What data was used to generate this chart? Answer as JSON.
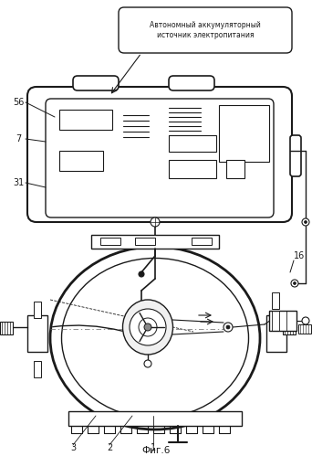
{
  "title": "Фиг.6",
  "label_56": "56",
  "label_7": "7",
  "label_31": "31",
  "label_16": "16",
  "label_3": "3",
  "label_2": "2",
  "label_1": "1",
  "callout_text": "Автономный аккумуляторный\nисточник электропитания",
  "bg_color": "#ffffff",
  "line_color": "#1a1a1a",
  "figure_size": [
    3.42,
    4.99
  ],
  "dpi": 100
}
